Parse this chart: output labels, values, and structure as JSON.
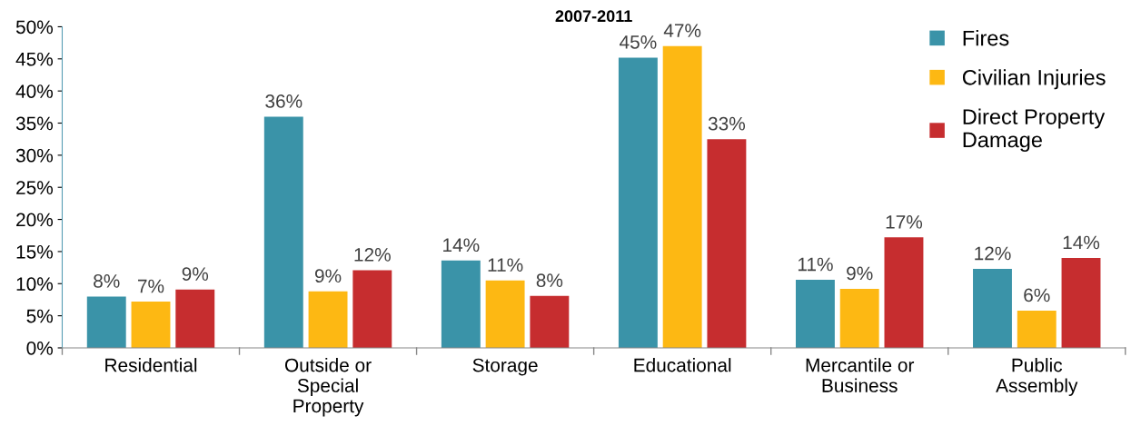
{
  "chart_data": {
    "type": "bar",
    "title": "2007-2011",
    "categories": [
      "Residential",
      "Outside or\nSpecial\nProperty",
      "Storage",
      "Educational",
      "Mercantile or\nBusiness",
      "Public\nAssembly"
    ],
    "series": [
      {
        "name": "Fires",
        "color": "#3a93a8",
        "values": [
          8.0,
          36.0,
          13.6,
          45.2,
          10.6,
          12.3
        ],
        "value_labels": [
          "8%",
          "36%",
          "14%",
          "45%",
          "11%",
          "12%"
        ]
      },
      {
        "name": "Civilian Injuries",
        "color": "#fdb813",
        "values": [
          7.2,
          8.8,
          10.5,
          47.0,
          9.2,
          5.8
        ],
        "value_labels": [
          "7%",
          "9%",
          "11%",
          "47%",
          "9%",
          "6%"
        ]
      },
      {
        "name": "Direct Property\nDamage",
        "color": "#c62d2f",
        "values": [
          9.1,
          12.1,
          8.1,
          32.5,
          17.2,
          14.0
        ],
        "value_labels": [
          "9%",
          "12%",
          "8%",
          "33%",
          "17%",
          "14%"
        ]
      }
    ],
    "ylim": [
      0,
      50
    ],
    "yticks": [
      {
        "value": 0,
        "label": "0%"
      },
      {
        "value": 5,
        "label": "5%"
      },
      {
        "value": 10,
        "label": "10%"
      },
      {
        "value": 15,
        "label": "15%"
      },
      {
        "value": 20,
        "label": "20%"
      },
      {
        "value": 25,
        "label": "25%"
      },
      {
        "value": 30,
        "label": "30%"
      },
      {
        "value": 35,
        "label": "35%"
      },
      {
        "value": 40,
        "label": "40%"
      },
      {
        "value": 45,
        "label": "45%"
      },
      {
        "value": 50,
        "label": "50%"
      }
    ],
    "grid": false,
    "legend": "top right"
  }
}
